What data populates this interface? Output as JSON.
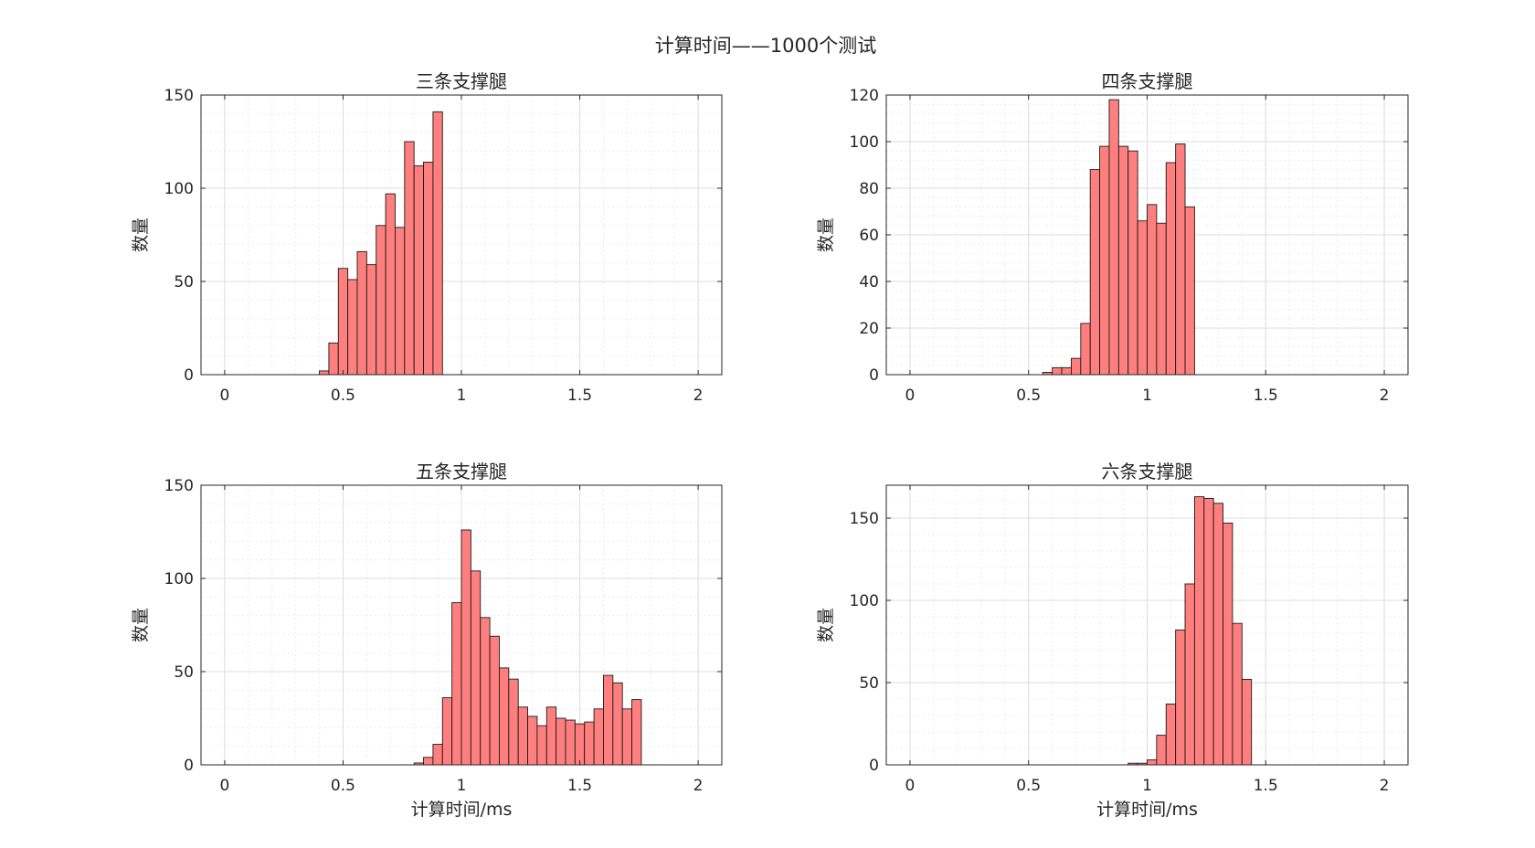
{
  "figure": {
    "title": "计算时间——1000个测试"
  },
  "colors": {
    "bar_fill": "#ff7f7f",
    "bar_edge": "#1a1a1a",
    "axes_edge": "#262626",
    "grid_major": "#dcdcdc",
    "grid_minor": "#ececec",
    "background": "#ffffff"
  },
  "chart_data": [
    {
      "type": "bar",
      "title": "三条支撑腿",
      "xlabel": "",
      "ylabel": "数量",
      "xlim": [
        -0.1,
        2.1
      ],
      "ylim": [
        0,
        150
      ],
      "xticks": [
        0,
        0.5,
        1,
        1.5,
        2
      ],
      "xtick_labels": [
        "0",
        "0.5",
        "1",
        "1.5",
        "2"
      ],
      "yticks": [
        0,
        50,
        100,
        150
      ],
      "ytick_labels": [
        "0",
        "50",
        "100",
        "150"
      ],
      "grid": true,
      "minor_grid": true,
      "bin_width": 0.04,
      "bin_start": 0.4,
      "values": [
        2,
        17,
        57,
        51,
        66,
        59,
        80,
        97,
        79,
        125,
        112,
        114,
        141
      ]
    },
    {
      "type": "bar",
      "title": "四条支撑腿",
      "xlabel": "",
      "ylabel": "数量",
      "xlim": [
        -0.1,
        2.1
      ],
      "ylim": [
        0,
        120
      ],
      "xticks": [
        0,
        0.5,
        1,
        1.5,
        2
      ],
      "xtick_labels": [
        "0",
        "0.5",
        "1",
        "1.5",
        "2"
      ],
      "yticks": [
        0,
        20,
        40,
        60,
        80,
        100,
        120
      ],
      "ytick_labels": [
        "0",
        "20",
        "40",
        "60",
        "80",
        "100",
        "120"
      ],
      "grid": true,
      "minor_grid": true,
      "bin_width": 0.04,
      "bin_start": 0.56,
      "values": [
        1,
        3,
        3,
        7,
        22,
        88,
        98,
        118,
        98,
        96,
        66,
        73,
        65,
        91,
        99,
        72
      ]
    },
    {
      "type": "bar",
      "title": "五条支撑腿",
      "xlabel": "计算时间/ms",
      "ylabel": "数量",
      "xlim": [
        -0.1,
        2.1
      ],
      "ylim": [
        0,
        150
      ],
      "xticks": [
        0,
        0.5,
        1,
        1.5,
        2
      ],
      "xtick_labels": [
        "0",
        "0.5",
        "1",
        "1.5",
        "2"
      ],
      "yticks": [
        0,
        50,
        100,
        150
      ],
      "ytick_labels": [
        "0",
        "50",
        "100",
        "150"
      ],
      "grid": true,
      "minor_grid": true,
      "bin_width": 0.04,
      "bin_start": 0.8,
      "values": [
        1,
        4,
        11,
        36,
        87,
        126,
        104,
        79,
        69,
        52,
        46,
        31,
        26,
        21,
        31,
        25,
        24,
        22,
        23,
        30,
        48,
        44,
        30,
        35
      ]
    },
    {
      "type": "bar",
      "title": "六条支撑腿",
      "xlabel": "计算时间/ms",
      "ylabel": "数量",
      "xlim": [
        -0.1,
        2.1
      ],
      "ylim": [
        0,
        170
      ],
      "xticks": [
        0,
        0.5,
        1,
        1.5,
        2
      ],
      "xtick_labels": [
        "0",
        "0.5",
        "1",
        "1.5",
        "2"
      ],
      "yticks": [
        0,
        50,
        100,
        150
      ],
      "ytick_labels": [
        "0",
        "50",
        "100",
        "150"
      ],
      "grid": true,
      "minor_grid": true,
      "bin_width": 0.04,
      "bin_start": 0.92,
      "values": [
        1,
        1,
        3,
        18,
        37,
        82,
        110,
        163,
        162,
        159,
        147,
        86,
        52
      ]
    }
  ]
}
